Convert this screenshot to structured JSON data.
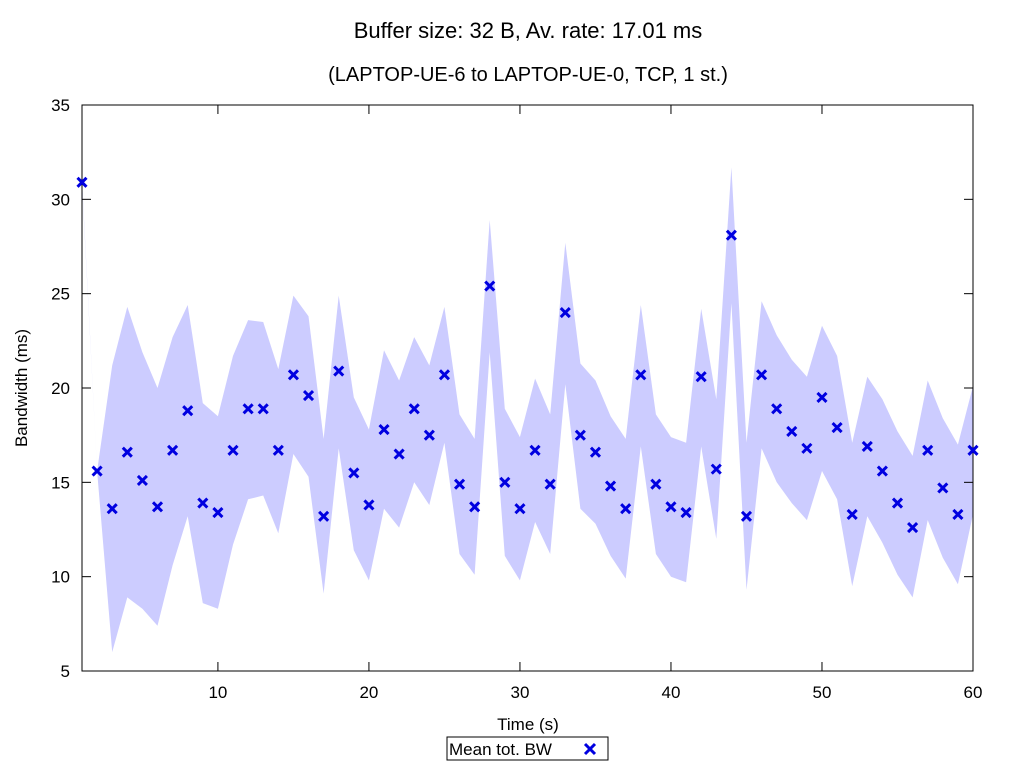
{
  "chart_data": {
    "type": "scatter",
    "title": "Buffer size: 32 B, Av. rate: 17.01 ms",
    "subtitle": "(LAPTOP-UE-6 to LAPTOP-UE-0, TCP, 1 st.)",
    "xlabel": "Time (s)",
    "ylabel": "Bandwidth (ms)",
    "xlim": [
      1,
      60
    ],
    "ylim": [
      5,
      35
    ],
    "xticks": [
      10,
      20,
      30,
      40,
      50,
      60
    ],
    "yticks": [
      5,
      10,
      15,
      20,
      25,
      30,
      35
    ],
    "grid": false,
    "legend_position": "bottom-center",
    "series": [
      {
        "name": "Mean tot. BW",
        "color": "#0000e0",
        "marker": "x",
        "x": [
          1,
          2,
          3,
          4,
          5,
          6,
          7,
          8,
          9,
          10,
          11,
          12,
          13,
          14,
          15,
          16,
          17,
          18,
          19,
          20,
          21,
          22,
          23,
          24,
          25,
          26,
          27,
          28,
          29,
          30,
          31,
          32,
          33,
          34,
          35,
          36,
          37,
          38,
          39,
          40,
          41,
          42,
          43,
          44,
          45,
          46,
          47,
          48,
          49,
          50,
          51,
          52,
          53,
          54,
          55,
          56,
          57,
          58,
          59,
          60
        ],
        "y": [
          30.9,
          15.6,
          13.6,
          16.6,
          15.1,
          13.7,
          16.7,
          18.8,
          13.9,
          13.4,
          16.7,
          18.9,
          18.9,
          16.7,
          20.7,
          19.6,
          13.2,
          20.9,
          15.5,
          13.8,
          17.8,
          16.5,
          18.9,
          17.5,
          20.7,
          14.9,
          13.7,
          25.4,
          15.0,
          13.6,
          16.7,
          14.9,
          24.0,
          17.5,
          16.6,
          14.8,
          13.6,
          20.7,
          14.9,
          13.7,
          13.4,
          20.6,
          15.7,
          28.1,
          13.2,
          20.7,
          18.9,
          17.7,
          16.8,
          19.5,
          17.9,
          13.3,
          16.9,
          15.6,
          13.9,
          12.6,
          16.7,
          14.7,
          13.3,
          16.7
        ]
      }
    ],
    "band": {
      "color": "#ccccff",
      "upper": [
        31.0,
        15.6,
        21.2,
        24.3,
        21.9,
        20.0,
        22.7,
        24.4,
        19.2,
        18.5,
        21.7,
        23.6,
        23.5,
        21.0,
        24.9,
        23.8,
        17.3,
        24.9,
        19.5,
        17.8,
        22.0,
        20.4,
        22.7,
        21.2,
        24.3,
        18.6,
        17.3,
        28.9,
        18.9,
        17.4,
        20.5,
        18.6,
        27.7,
        21.3,
        20.4,
        18.5,
        17.3,
        24.4,
        18.6,
        17.4,
        17.1,
        24.2,
        19.4,
        31.7,
        17.1,
        24.6,
        22.8,
        21.5,
        20.6,
        23.3,
        21.7,
        17.1,
        20.6,
        19.4,
        17.7,
        16.4,
        20.4,
        18.4,
        17.0,
        20.1
      ],
      "lower": [
        30.8,
        15.6,
        6.0,
        8.9,
        8.3,
        7.4,
        10.6,
        13.2,
        8.6,
        8.3,
        11.7,
        14.1,
        14.3,
        12.3,
        16.5,
        15.3,
        9.1,
        16.8,
        11.4,
        9.8,
        13.6,
        12.6,
        15.0,
        13.8,
        17.1,
        11.2,
        10.1,
        21.9,
        11.1,
        9.8,
        12.9,
        11.2,
        20.2,
        13.6,
        12.8,
        11.1,
        9.9,
        16.9,
        11.2,
        10.0,
        9.7,
        16.9,
        12.0,
        24.5,
        9.3,
        16.8,
        15.0,
        13.9,
        13.0,
        15.6,
        14.1,
        9.5,
        13.2,
        11.8,
        10.1,
        8.9,
        13.0,
        11.0,
        9.6,
        13.3
      ]
    }
  }
}
